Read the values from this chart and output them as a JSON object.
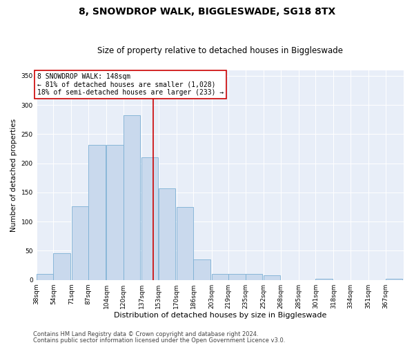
{
  "title": "8, SNOWDROP WALK, BIGGLESWADE, SG18 8TX",
  "subtitle": "Size of property relative to detached houses in Biggleswade",
  "xlabel": "Distribution of detached houses by size in Biggleswade",
  "ylabel": "Number of detached properties",
  "bar_labels": [
    "38sqm",
    "54sqm",
    "71sqm",
    "87sqm",
    "104sqm",
    "120sqm",
    "137sqm",
    "153sqm",
    "170sqm",
    "186sqm",
    "203sqm",
    "219sqm",
    "235sqm",
    "252sqm",
    "268sqm",
    "285sqm",
    "301sqm",
    "318sqm",
    "334sqm",
    "351sqm",
    "367sqm"
  ],
  "bar_values": [
    10,
    46,
    126,
    232,
    232,
    283,
    210,
    157,
    125,
    35,
    10,
    10,
    10,
    8,
    0,
    0,
    2,
    0,
    0,
    0,
    2
  ],
  "bar_color": "#c9d9ed",
  "bar_edge_color": "#7bafd4",
  "vline_x": 148,
  "vline_color": "#cc0000",
  "annotation_text": "8 SNOWDROP WALK: 148sqm\n← 81% of detached houses are smaller (1,028)\n18% of semi-detached houses are larger (233) →",
  "annotation_box_color": "#ffffff",
  "annotation_box_edge": "#cc0000",
  "ylim": [
    0,
    360
  ],
  "yticks": [
    0,
    50,
    100,
    150,
    200,
    250,
    300,
    350
  ],
  "background_color": "#e8eef8",
  "footer1": "Contains HM Land Registry data © Crown copyright and database right 2024.",
  "footer2": "Contains public sector information licensed under the Open Government Licence v3.0.",
  "title_fontsize": 10,
  "subtitle_fontsize": 8.5,
  "xlabel_fontsize": 8,
  "ylabel_fontsize": 7.5,
  "tick_fontsize": 6.5,
  "annotation_fontsize": 7,
  "footer_fontsize": 6,
  "bin_starts": [
    38,
    54,
    71,
    87,
    104,
    120,
    137,
    153,
    170,
    186,
    203,
    219,
    235,
    252,
    268,
    285,
    301,
    318,
    334,
    351,
    367
  ],
  "bin_width": 16
}
